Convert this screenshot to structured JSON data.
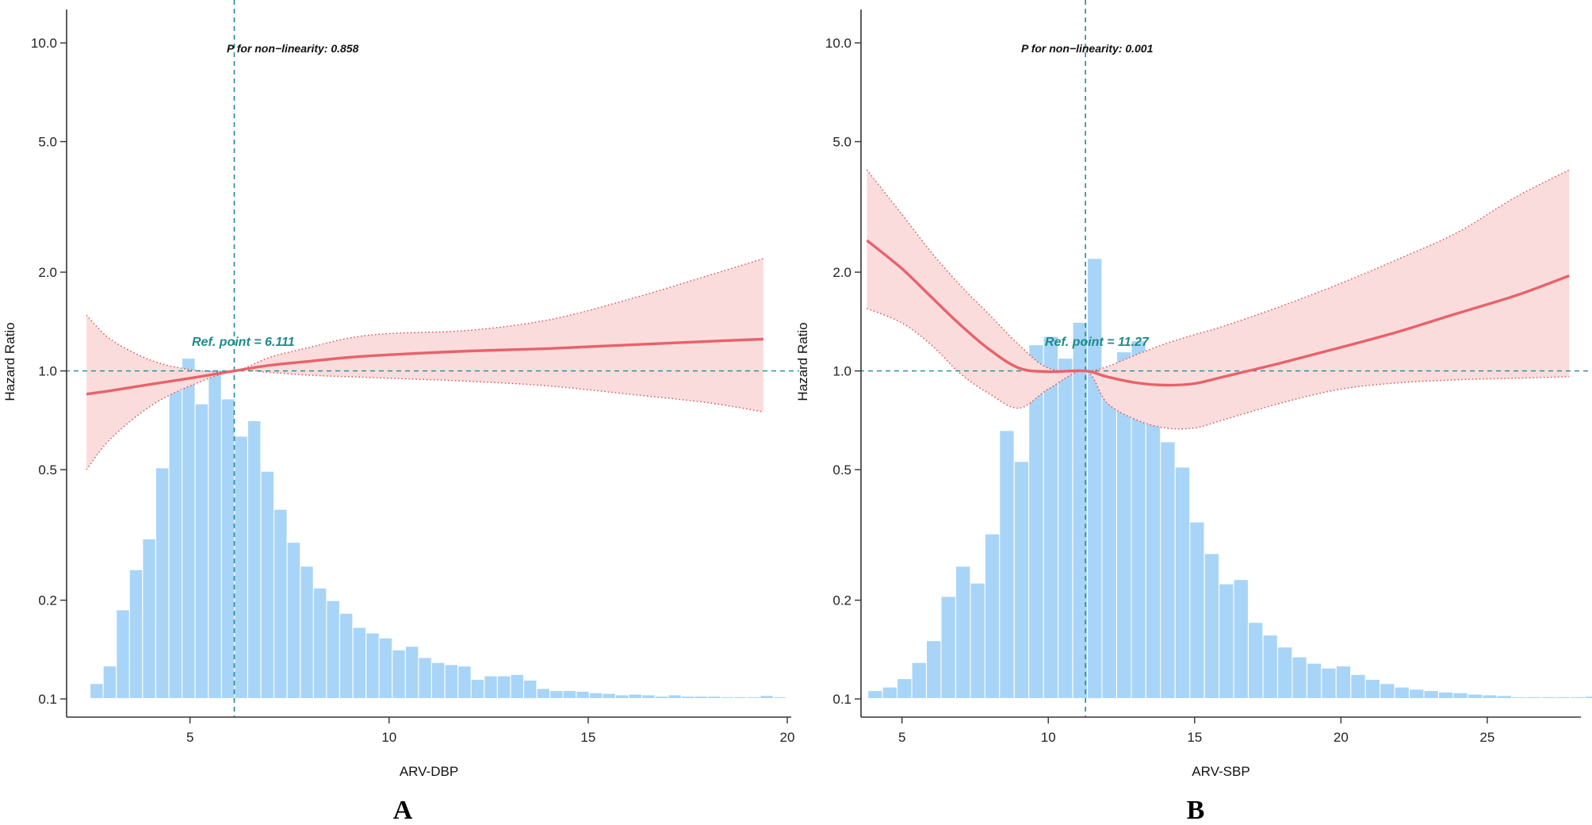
{
  "figure": {
    "panels": [
      {
        "letter": "A",
        "xlabel": "ARV-DBP",
        "ylabel": "Hazard Ratio",
        "p_text": "P for non−linearity: 0.858",
        "ref_text": "Ref. point = 6.111"
      },
      {
        "letter": "B",
        "xlabel": "ARV-SBP",
        "ylabel": "Hazard Ratio",
        "p_text": "P for non−linearity: 0.001",
        "ref_text": "Ref. point = 11.27"
      }
    ]
  },
  "colors": {
    "curve": "#e8626a",
    "band_fill": "#fbdcdc",
    "band_border": "#d44a52",
    "histogram": "#a8d4f7",
    "reference_lines": "#1f8a9a",
    "axis": "#333333"
  },
  "chart_data": [
    {
      "type": "line",
      "panel": "A",
      "xlabel": "ARV-DBP",
      "ylabel": "Hazard Ratio",
      "y_scale": "log",
      "xlim": [
        1.9,
        20.1
      ],
      "ylim": [
        0.09,
        12.5
      ],
      "x_ticks": [
        5,
        10,
        15,
        20
      ],
      "y_ticks": [
        0.1,
        0.2,
        0.5,
        1.0,
        2.0,
        5.0,
        10.0
      ],
      "y_tick_labels": [
        "0.1",
        "0.2",
        "0.5",
        "1.0",
        "2.0",
        "5.0",
        "10.0"
      ],
      "reference_x": 6.111,
      "reference_y": 1.0,
      "annotations": [
        "P for non−linearity: 0.858",
        "Ref. point = 6.111"
      ],
      "series": [
        {
          "x": [
            2.4,
            3.0,
            4.0,
            5.0,
            6.111,
            7.0,
            8.0,
            9.0,
            10.0,
            12.0,
            14.0,
            16.0,
            18.0,
            19.4
          ],
          "hr": [
            0.85,
            0.87,
            0.91,
            0.95,
            1.0,
            1.04,
            1.07,
            1.1,
            1.12,
            1.15,
            1.17,
            1.2,
            1.23,
            1.25
          ],
          "lower": [
            0.5,
            0.62,
            0.78,
            0.9,
            1.0,
            0.99,
            0.97,
            0.96,
            0.95,
            0.93,
            0.9,
            0.85,
            0.8,
            0.75
          ],
          "upper": [
            1.48,
            1.25,
            1.08,
            1.01,
            1.0,
            1.1,
            1.18,
            1.26,
            1.3,
            1.33,
            1.43,
            1.65,
            1.95,
            2.2
          ]
        }
      ],
      "histogram": {
        "bin_width": 0.33,
        "start": 2.5,
        "y_frac": [
          0.02,
          0.045,
          0.125,
          0.182,
          0.226,
          0.327,
          0.437,
          0.483,
          0.418,
          0.466,
          0.425,
          0.372,
          0.394,
          0.322,
          0.268,
          0.221,
          0.187,
          0.156,
          0.138,
          0.12,
          0.1,
          0.092,
          0.085,
          0.068,
          0.073,
          0.057,
          0.05,
          0.047,
          0.045,
          0.026,
          0.031,
          0.031,
          0.033,
          0.025,
          0.013,
          0.01,
          0.01,
          0.009,
          0.007,
          0.006,
          0.004,
          0.005,
          0.004,
          0.002,
          0.004,
          0.002,
          0.002,
          0.002,
          0.001,
          0.001,
          0.001,
          0.003,
          0.001
        ]
      }
    },
    {
      "type": "line",
      "panel": "B",
      "xlabel": "ARV-SBP",
      "ylabel": "Hazard Ratio",
      "y_scale": "log",
      "xlim": [
        3.6,
        28.2
      ],
      "ylim": [
        0.09,
        12.5
      ],
      "x_ticks": [
        5,
        10,
        15,
        20,
        25
      ],
      "y_ticks": [
        0.1,
        0.2,
        0.5,
        1.0,
        2.0,
        5.0,
        10.0
      ],
      "y_tick_labels": [
        "0.1",
        "0.2",
        "0.5",
        "1.0",
        "2.0",
        "5.0",
        "10.0"
      ],
      "reference_x": 11.27,
      "reference_y": 1.0,
      "annotations": [
        "P for non−linearity: 0.001",
        "Ref. point = 11.27"
      ],
      "series": [
        {
          "x": [
            3.8,
            5.0,
            6.0,
            7.0,
            8.0,
            9.0,
            10.0,
            11.27,
            12.0,
            13.0,
            14.0,
            15.0,
            16.0,
            18.0,
            20.0,
            22.0,
            24.0,
            26.0,
            27.8
          ],
          "hr": [
            2.5,
            2.05,
            1.68,
            1.38,
            1.16,
            1.02,
            0.995,
            1.0,
            0.96,
            0.92,
            0.905,
            0.915,
            0.96,
            1.06,
            1.18,
            1.32,
            1.5,
            1.7,
            1.95
          ],
          "lower": [
            1.55,
            1.4,
            1.2,
            0.98,
            0.85,
            0.77,
            0.88,
            1.0,
            0.8,
            0.71,
            0.67,
            0.67,
            0.71,
            0.8,
            0.88,
            0.92,
            0.94,
            0.95,
            0.96
          ],
          "upper": [
            4.1,
            3.0,
            2.3,
            1.82,
            1.48,
            1.2,
            1.02,
            1.0,
            1.03,
            1.12,
            1.21,
            1.29,
            1.37,
            1.58,
            1.85,
            2.2,
            2.65,
            3.4,
            4.1
          ]
        }
      ],
      "histogram": {
        "bin_width": 0.5,
        "start": 3.85,
        "y_frac": [
          0.01,
          0.015,
          0.027,
          0.05,
          0.081,
          0.144,
          0.187,
          0.163,
          0.233,
          0.38,
          0.336,
          0.502,
          0.514,
          0.483,
          0.534,
          0.625,
          0.445,
          0.492,
          0.508,
          0.426,
          0.364,
          0.328,
          0.25,
          0.205,
          0.162,
          0.168,
          0.107,
          0.089,
          0.072,
          0.058,
          0.049,
          0.042,
          0.045,
          0.033,
          0.026,
          0.02,
          0.015,
          0.012,
          0.01,
          0.008,
          0.007,
          0.005,
          0.004,
          0.003,
          0.001,
          0.001,
          0.001,
          0.001,
          0.001,
          0.002,
          0.001,
          0.001,
          0.001
        ]
      }
    }
  ]
}
